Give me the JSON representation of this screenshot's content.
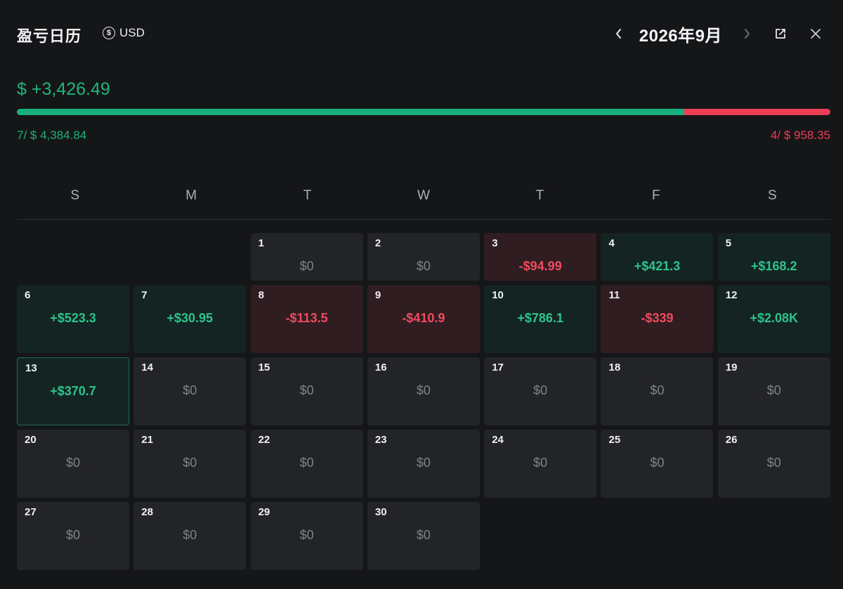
{
  "header": {
    "title": "盈亏日历",
    "currency": "USD",
    "month": "2026年9月"
  },
  "summary": {
    "total": "$ +3,426.49",
    "win": "7/ $ 4,384.84",
    "loss": "4/ $ 958.35",
    "win_ratio": 0.82
  },
  "colors": {
    "positive": "#17b07d",
    "negative": "#ee3e57",
    "background": "#151618"
  },
  "weekdays": [
    "S",
    "M",
    "T",
    "W",
    "T",
    "F",
    "S"
  ],
  "calendar": {
    "leading_blanks": 2,
    "days": [
      {
        "day": "1",
        "value": "$0",
        "type": "zero"
      },
      {
        "day": "2",
        "value": "$0",
        "type": "zero"
      },
      {
        "day": "3",
        "value": "-$94.99",
        "type": "neg"
      },
      {
        "day": "4",
        "value": "+$421.3",
        "type": "pos"
      },
      {
        "day": "5",
        "value": "+$168.2",
        "type": "pos"
      },
      {
        "day": "6",
        "value": "+$523.3",
        "type": "pos"
      },
      {
        "day": "7",
        "value": "+$30.95",
        "type": "pos"
      },
      {
        "day": "8",
        "value": "-$113.5",
        "type": "neg"
      },
      {
        "day": "9",
        "value": "-$410.9",
        "type": "neg"
      },
      {
        "day": "10",
        "value": "+$786.1",
        "type": "pos"
      },
      {
        "day": "11",
        "value": "-$339",
        "type": "neg"
      },
      {
        "day": "12",
        "value": "+$2.08K",
        "type": "pos"
      },
      {
        "day": "13",
        "value": "+$370.7",
        "type": "pos",
        "selected": true
      },
      {
        "day": "14",
        "value": "$0",
        "type": "zero"
      },
      {
        "day": "15",
        "value": "$0",
        "type": "zero"
      },
      {
        "day": "16",
        "value": "$0",
        "type": "zero"
      },
      {
        "day": "17",
        "value": "$0",
        "type": "zero"
      },
      {
        "day": "18",
        "value": "$0",
        "type": "zero"
      },
      {
        "day": "19",
        "value": "$0",
        "type": "zero"
      },
      {
        "day": "20",
        "value": "$0",
        "type": "zero"
      },
      {
        "day": "21",
        "value": "$0",
        "type": "zero"
      },
      {
        "day": "22",
        "value": "$0",
        "type": "zero"
      },
      {
        "day": "23",
        "value": "$0",
        "type": "zero"
      },
      {
        "day": "24",
        "value": "$0",
        "type": "zero"
      },
      {
        "day": "25",
        "value": "$0",
        "type": "zero"
      },
      {
        "day": "26",
        "value": "$0",
        "type": "zero"
      },
      {
        "day": "27",
        "value": "$0",
        "type": "zero"
      },
      {
        "day": "28",
        "value": "$0",
        "type": "zero"
      },
      {
        "day": "29",
        "value": "$0",
        "type": "zero"
      },
      {
        "day": "30",
        "value": "$0",
        "type": "zero"
      }
    ]
  },
  "icons": {
    "currency": "currency-exchange-icon",
    "prev": "chevron-left-icon",
    "next": "chevron-right-icon",
    "popout": "external-link-icon",
    "close": "close-icon"
  }
}
